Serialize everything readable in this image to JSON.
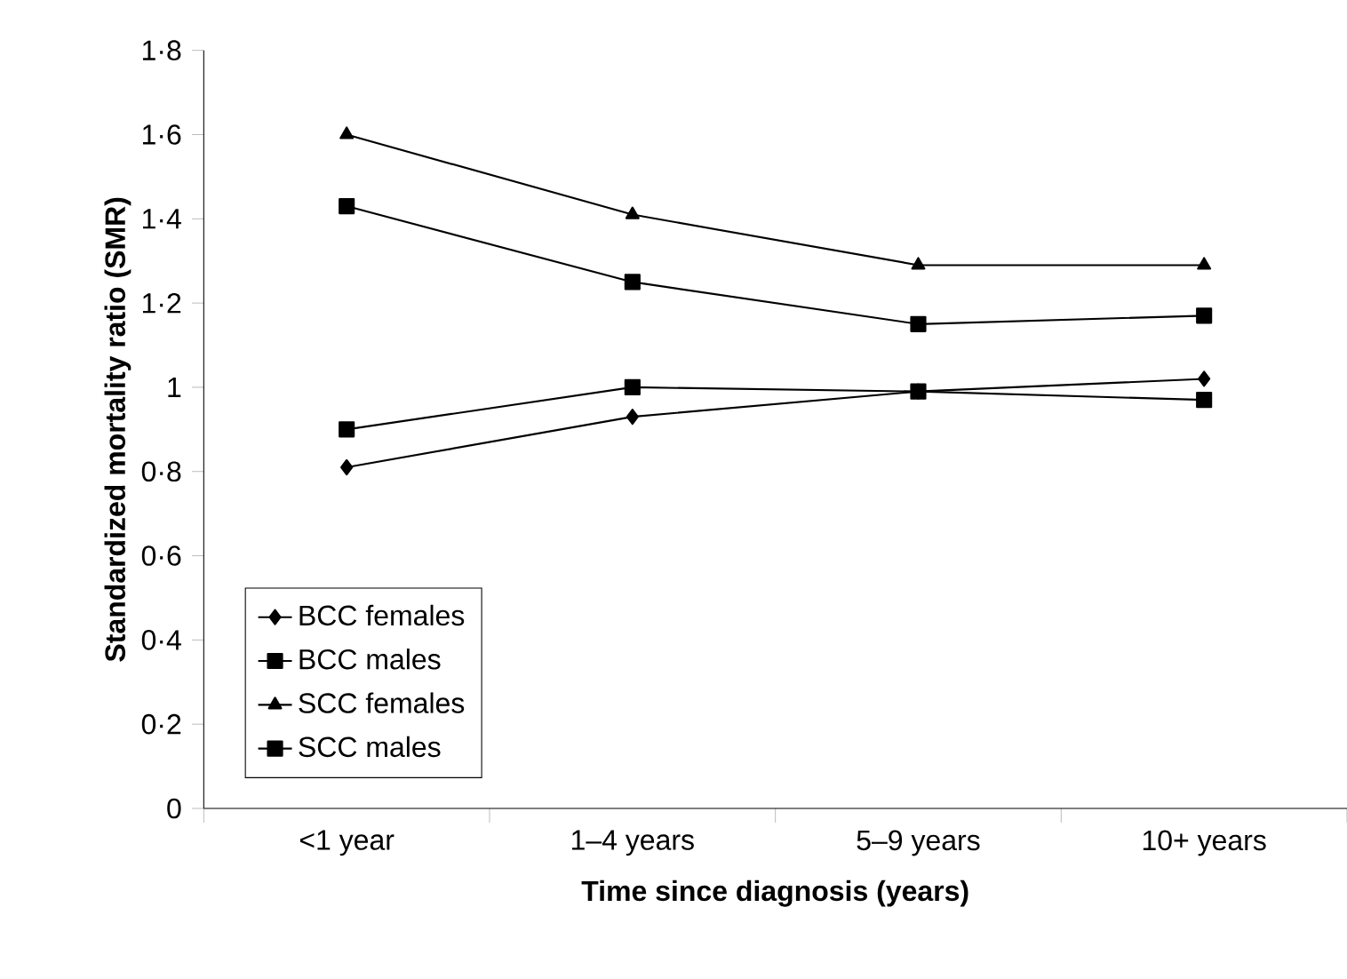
{
  "chart_data": {
    "type": "line",
    "xlabel": "Time since diagnosis (years)",
    "ylabel": "Standardized mortality ratio (SMR)",
    "categories": [
      "<1 year",
      "1–4 years",
      "5–9 years",
      "10+ years"
    ],
    "series": [
      {
        "name": "BCC females",
        "color": "#000000",
        "marker": "diamond",
        "values": [
          0.81,
          0.93,
          0.99,
          1.02
        ]
      },
      {
        "name": "BCC males",
        "color": "#000000",
        "marker": "square",
        "values": [
          0.9,
          1.0,
          0.99,
          0.97
        ]
      },
      {
        "name": "SCC females",
        "color": "#000000",
        "marker": "triangle",
        "values": [
          1.6,
          1.41,
          1.29,
          1.29
        ]
      },
      {
        "name": "SCC males",
        "color": "#000000",
        "marker": "square",
        "values": [
          1.43,
          1.25,
          1.15,
          1.17
        ]
      }
    ],
    "ylim": [
      0,
      1.8
    ],
    "yticks": [
      0,
      {
        "value": 0.2,
        "label": "0·2"
      },
      {
        "value": 0.4,
        "label": "0·4"
      },
      {
        "value": 0.6,
        "label": "0·6"
      },
      {
        "value": 0.8,
        "label": "0·8"
      },
      1,
      {
        "value": 1.2,
        "label": "1·2"
      },
      {
        "value": 1.4,
        "label": "1·4"
      },
      {
        "value": 1.6,
        "label": "1·6"
      },
      {
        "value": 1.8,
        "label": "1·8"
      }
    ],
    "grid": false,
    "legend": "bottom left",
    "line_style": "solid"
  }
}
